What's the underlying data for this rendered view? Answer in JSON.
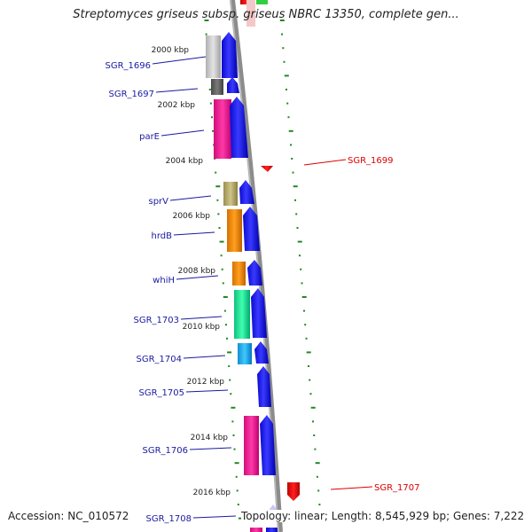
{
  "title": "Streptomyces griseus subsp. griseus NBRC 13350, complete gen...",
  "footer": {
    "accession": "Accession: NC_010572",
    "summary": "Topology: linear; Length: 8,545,929 bp; Genes: 7,222"
  },
  "ticks": [
    "2000 kbp",
    "2002 kbp",
    "2004 kbp",
    "2006 kbp",
    "2008 kbp",
    "2010 kbp",
    "2012 kbp",
    "2014 kbp",
    "2016 kbp"
  ],
  "genes_left": [
    "SGR_1696",
    "SGR_1697",
    "parE",
    "sprV",
    "hrdB",
    "whiH",
    "SGR_1703",
    "SGR_1704",
    "SGR_1705",
    "SGR_1706",
    "SGR_1708"
  ],
  "genes_right": [
    "SGR_1699",
    "SGR_1707"
  ],
  "colors": {
    "gene_label": "#1a1aa0",
    "gene_label_right": "#dd0000",
    "cds_arrow": "#1010ee",
    "grid_dots": "#228822",
    "backbone": "#888888"
  }
}
